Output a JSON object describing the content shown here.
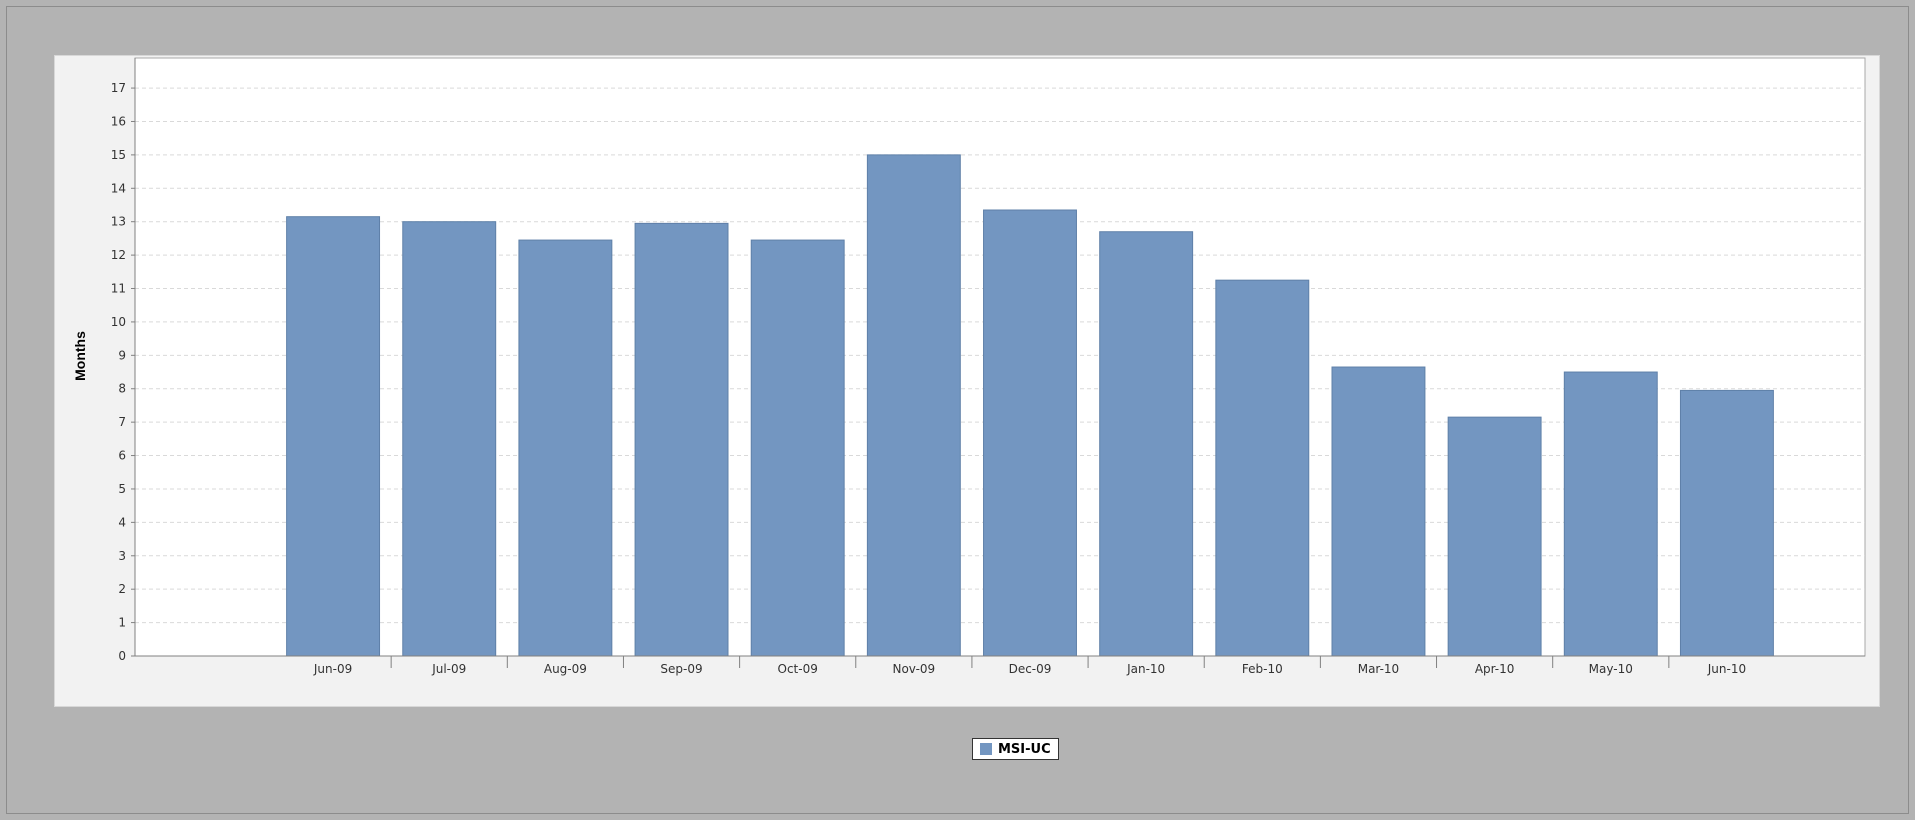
{
  "chart_data": {
    "type": "bar",
    "categories": [
      "Jun-09",
      "Jul-09",
      "Aug-09",
      "Sep-09",
      "Oct-09",
      "Nov-09",
      "Dec-09",
      "Jan-10",
      "Feb-10",
      "Mar-10",
      "Apr-10",
      "May-10",
      "Jun-10"
    ],
    "series": [
      {
        "name": "MSI-UC",
        "values": [
          13.15,
          13.0,
          12.45,
          12.95,
          12.45,
          15.0,
          13.35,
          12.7,
          11.25,
          8.65,
          7.15,
          8.5,
          7.95
        ]
      }
    ],
    "ylabel": "Months",
    "xlabel": "",
    "ylim": [
      0,
      17
    ],
    "yticks": [
      0,
      1,
      2,
      3,
      4,
      5,
      6,
      7,
      8,
      9,
      10,
      11,
      12,
      13,
      14,
      15,
      16,
      17
    ],
    "grid": true,
    "legend_position": "bottom-center",
    "colors": {
      "bar": "#7396c1",
      "bar_edge": "#5f80a8",
      "grid": "#d9d9d9",
      "plot_background": "#ffffff",
      "panel_background": "#f2f2f2",
      "page_background": "#b3b3b3"
    }
  }
}
